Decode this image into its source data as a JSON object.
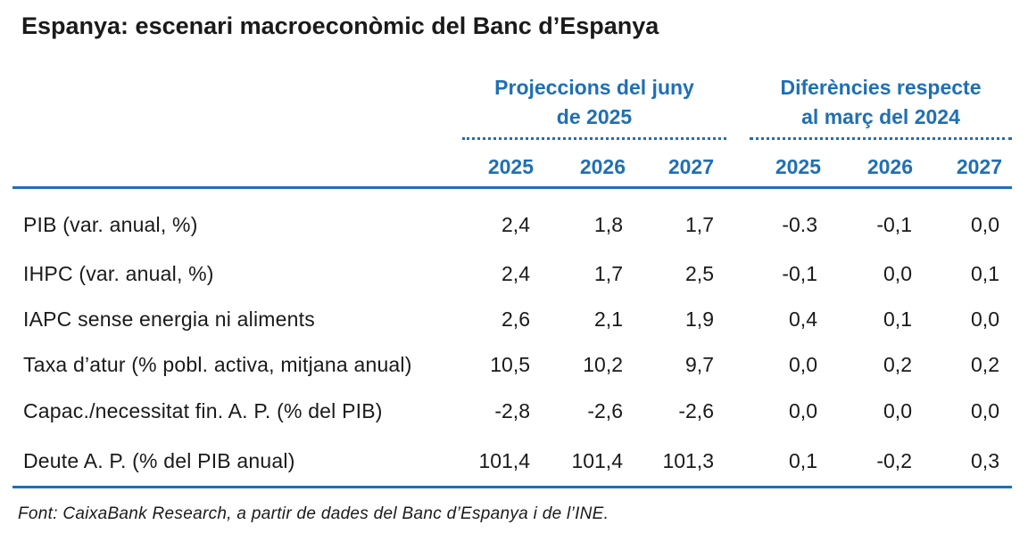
{
  "title": "Espanya: escenari macroeconòmic del Banc d’Espanya",
  "groups": {
    "projections": [
      "Projeccions del juny",
      "de 2025"
    ],
    "differences": [
      "Diferències respecte",
      "al març del 2024"
    ]
  },
  "years": [
    "2025",
    "2026",
    "2027",
    "2025",
    "2026",
    "2027"
  ],
  "rows": [
    {
      "label": "PIB (var. anual, %)",
      "values": [
        "2,4",
        "1,8",
        "1,7",
        "-0.3",
        "-0,1",
        "0,0"
      ]
    },
    {
      "label": "IHPC (var. anual, %)",
      "values": [
        "2,4",
        "1,7",
        "2,5",
        "-0,1",
        "0,0",
        "0,1"
      ]
    },
    {
      "label": "IAPC sense energia ni aliments",
      "values": [
        "2,6",
        "2,1",
        "1,9",
        "0,4",
        "0,1",
        "0,0"
      ]
    },
    {
      "label": "Taxa d’atur (% pobl. activa, mitjana anual)",
      "values": [
        "10,5",
        "10,2",
        "9,7",
        "0,0",
        "0,2",
        "0,2"
      ]
    },
    {
      "label": "Capac./necessitat fin. A. P. (% del PIB)",
      "values": [
        "-2,8",
        "-2,6",
        "-2,6",
        "0,0",
        "0,0",
        "0,0"
      ]
    },
    {
      "label": "Deute A. P. (% del PIB anual)",
      "values": [
        "101,4",
        "101,4",
        "101,3",
        "0,1",
        "-0,2",
        "0,3"
      ]
    }
  ],
  "source": "Font: CaixaBank  Research, a partir de dades del Banc d’Espanya i de l’INE."
}
